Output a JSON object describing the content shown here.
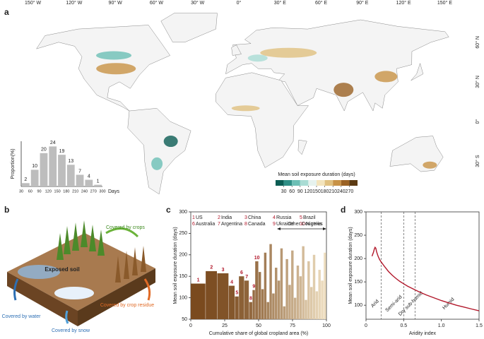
{
  "chart_data": [
    {
      "type": "map",
      "panel": "a",
      "lon_labels": [
        "150° W",
        "120° W",
        "90° W",
        "60° W",
        "30° W",
        "0°",
        "30° E",
        "60° E",
        "90° E",
        "120° E",
        "150° E"
      ],
      "lat_labels": [
        "60° N",
        "30° N",
        "0°",
        "30° S"
      ]
    },
    {
      "type": "histogram",
      "bins": [
        30,
        60,
        90,
        120,
        150,
        180,
        210,
        240,
        270,
        300
      ],
      "values": [
        2,
        10,
        20,
        24,
        19,
        13,
        7,
        4,
        1
      ],
      "y_label": "Proportion(%)",
      "x_label": "Days",
      "ylim": [
        0,
        25
      ],
      "color": "#bdbdbd"
    },
    {
      "type": "colorbar",
      "title": "Mean soil exposure duration (days)",
      "ticks": [
        30,
        60,
        90,
        120,
        150,
        180,
        210,
        240,
        270
      ],
      "colors": [
        "#0b5d54",
        "#2f8f86",
        "#6cbfb5",
        "#a9dcd4",
        "#e6f2ee",
        "#f3e4bd",
        "#e0c07f",
        "#c89245",
        "#9a6124",
        "#5c3a12"
      ]
    },
    {
      "type": "bar",
      "panel": "c",
      "x_edges": [
        0,
        11,
        19.5,
        28,
        32.5,
        35.5,
        39.5,
        43,
        45.5,
        47.5,
        50,
        52,
        54,
        56,
        58,
        60,
        62,
        64,
        66,
        68,
        70,
        72,
        74,
        76,
        78,
        80,
        82,
        84,
        86,
        88,
        90,
        92,
        94,
        96,
        98,
        100
      ],
      "values": [
        133,
        162,
        157,
        128,
        103,
        150,
        140,
        90,
        118,
        185,
        160,
        120,
        205,
        90,
        225,
        110,
        170,
        140,
        215,
        80,
        190,
        130,
        210,
        100,
        175,
        150,
        220,
        95,
        185,
        125,
        200,
        115,
        165,
        140,
        205
      ],
      "categories": [
        "US",
        "India",
        "China",
        "Russia",
        "Brazil",
        "Australia",
        "Argentina",
        "Canada",
        "Ukraine",
        "Nigeria",
        null,
        null,
        null,
        null,
        null,
        null,
        null,
        null,
        null,
        null,
        null,
        null,
        null,
        null,
        null,
        null,
        null,
        null,
        null,
        null,
        null,
        null,
        null,
        null,
        null
      ],
      "ranks": [
        1,
        2,
        3,
        4,
        5,
        6,
        7,
        8,
        9,
        10,
        null,
        null,
        null,
        null,
        null,
        null,
        null,
        null,
        null,
        null,
        null,
        null,
        null,
        null,
        null,
        null,
        null,
        null,
        null,
        null,
        null,
        null,
        null,
        null,
        null
      ],
      "other_label": "Other Countries",
      "color": "#7a4a1e",
      "xlim": [
        0,
        100
      ],
      "ylim": [
        50,
        300
      ],
      "xticks": [
        0,
        25,
        50,
        75,
        100
      ],
      "yticks": [
        50,
        100,
        150,
        200,
        250,
        300
      ],
      "x_label": "Cumulative share of global cropland area (%)",
      "y_label": "Mean soil exposure duration (days)"
    },
    {
      "type": "line",
      "panel": "d",
      "x": [
        0.08,
        0.1,
        0.11,
        0.12,
        0.13,
        0.14,
        0.16,
        0.18,
        0.2,
        0.25,
        0.3,
        0.35,
        0.4,
        0.45,
        0.5,
        0.55,
        0.6,
        0.65,
        0.7,
        0.8,
        0.9,
        1.0,
        1.1,
        1.2,
        1.3,
        1.4,
        1.5
      ],
      "values": [
        205,
        214,
        220,
        224,
        222,
        215,
        205,
        198,
        193,
        182,
        172,
        164,
        157,
        151,
        146,
        141,
        137,
        133,
        129,
        122,
        116,
        110,
        105,
        100,
        96,
        92,
        88
      ],
      "color": "#b2182b",
      "thresholds": [
        0.2,
        0.5,
        0.65
      ],
      "zones": [
        "Arid",
        "Semi-arid",
        "Dry sub-humid",
        "Humid"
      ],
      "xlim": [
        0,
        1.5
      ],
      "ylim": [
        70,
        300
      ],
      "xticks": [
        0,
        0.5,
        {
          "value": 1,
          "label": "1.0"
        },
        1.5
      ],
      "yticks": [
        100,
        150,
        200,
        250,
        300
      ],
      "x_label": "Aridity index",
      "y_label": "Mean soil exposure duration (days)"
    }
  ],
  "illustration": {
    "panel": "b",
    "crops": "Covered by crops",
    "soil": "Exposed soil",
    "water": "Covered by water",
    "snow": "Covered by snow",
    "residue": "Covered by crop residue"
  }
}
